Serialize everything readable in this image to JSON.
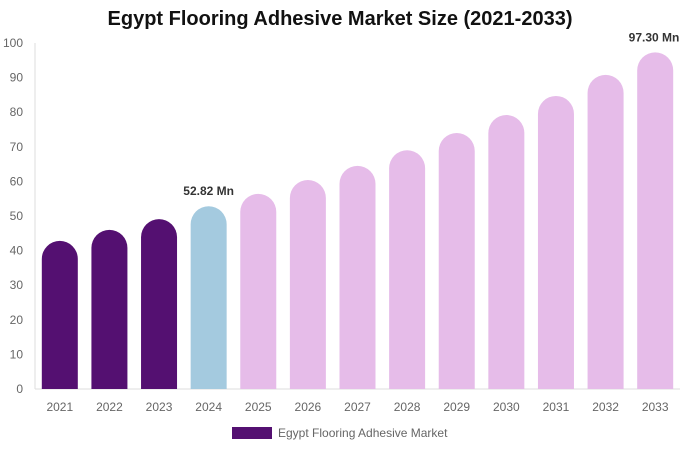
{
  "chart_data": {
    "type": "bar",
    "title": "Egypt Flooring Adhesive Market Size (2021-2033)",
    "categories": [
      "2021",
      "2022",
      "2023",
      "2024",
      "2025",
      "2026",
      "2027",
      "2028",
      "2029",
      "2030",
      "2031",
      "2032",
      "2033"
    ],
    "series": [
      {
        "name": "Egypt Flooring Adhesive Market",
        "values": [
          42.8,
          46.0,
          49.1,
          52.82,
          56.4,
          60.4,
          64.5,
          69.0,
          74.0,
          79.2,
          84.7,
          90.8,
          97.3
        ]
      }
    ],
    "data_labels": {
      "3": "52.82 Mn",
      "12": "97.30 Mn"
    },
    "ylim": [
      0,
      100
    ],
    "yticks": [
      0,
      10,
      20,
      30,
      40,
      50,
      60,
      70,
      80,
      90,
      100
    ],
    "grid": false,
    "legend_placement": "bottom",
    "colors": {
      "historical": "#541071",
      "base_year": "#a4cadf",
      "forecast": "#e6bce9"
    }
  }
}
